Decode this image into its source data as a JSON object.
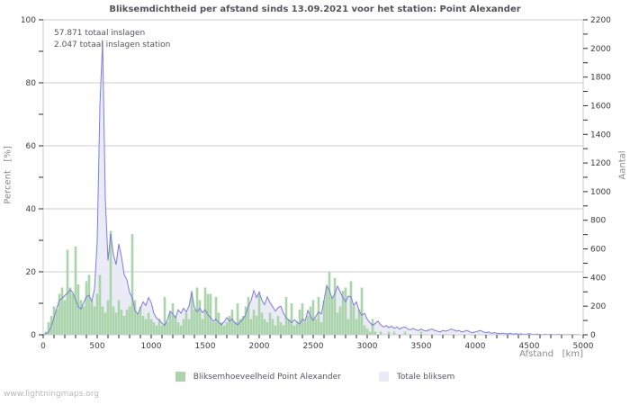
{
  "title": "Bliksemdichtheid per afstand sinds 13.09.2021 voor het station: Point Alexander",
  "annotations": {
    "line1": "57.871 totaal inslagen",
    "line2": "2.047 totaal inslagen station"
  },
  "watermark": "www.lightningmaps.org",
  "colors": {
    "grid": "#cccccc",
    "tick": "#2a2a2a",
    "bar_green": "#aad4aa",
    "line_blue": "#7d7dd8",
    "fill_lavender": "#ebebf8"
  },
  "legend": [
    {
      "label": "Bliksemhoeveelheid Point Alexander",
      "color": "#aad4aa"
    },
    {
      "label": "Totale bliksem",
      "color": "#ebebf8"
    }
  ],
  "axes": {
    "left": {
      "title": "Percent   [%]",
      "major_ticks": [
        0,
        20,
        40,
        60,
        80,
        100
      ],
      "minor_step": 10
    },
    "right": {
      "title": "Aantal",
      "major_ticks": [
        0,
        200,
        400,
        600,
        800,
        1000,
        1200,
        1400,
        1600,
        1800,
        2000,
        2200
      ],
      "minor_step": 100
    },
    "bottom": {
      "title": "Afstand   [km]",
      "major_ticks": [
        0,
        500,
        1000,
        1500,
        2000,
        2500,
        3000,
        3500,
        4000,
        4500,
        5000
      ],
      "minor_step": 100
    }
  },
  "chart_data": {
    "type": "combo",
    "x_range": [
      0,
      5000
    ],
    "x_step": 25,
    "xlabel": "Afstand [km]",
    "left_ylabel": "Percent [%]",
    "right_ylabel": "Aantal",
    "left_ylim": [
      0,
      100
    ],
    "right_ylim": [
      0,
      2200
    ],
    "grid": true,
    "legend_position": "bottom",
    "series": [
      {
        "name": "Bliksemhoeveelheid Point Alexander",
        "type": "bar",
        "axis": "left",
        "unit": "%",
        "color": "#aad4aa",
        "values": [
          0,
          1,
          4,
          6,
          9,
          8,
          13,
          15,
          11,
          27,
          15,
          13,
          28,
          16,
          11,
          9,
          17,
          19,
          11,
          9,
          13,
          19,
          9,
          7,
          11,
          33,
          9,
          7,
          11,
          8,
          6,
          8,
          9,
          32,
          11,
          7,
          9,
          6,
          5,
          7,
          5,
          4,
          3,
          5,
          3,
          12,
          4,
          7,
          10,
          6,
          4,
          3,
          5,
          7,
          5,
          14,
          8,
          15,
          11,
          5,
          15,
          13,
          13,
          4,
          12,
          7,
          4,
          3,
          4,
          6,
          8,
          4,
          10,
          5,
          6,
          9,
          12,
          5,
          8,
          6,
          13,
          7,
          5,
          4,
          7,
          5,
          3,
          6,
          4,
          3,
          12,
          5,
          10,
          3,
          4,
          8,
          10,
          4,
          6,
          9,
          11,
          5,
          12,
          4,
          11,
          15,
          20,
          12,
          18,
          7,
          9,
          14,
          15,
          5,
          17,
          9,
          5,
          8,
          15,
          3,
          2,
          1,
          5,
          1,
          0,
          1,
          0,
          0,
          1,
          0,
          1,
          0,
          0,
          0,
          1,
          0,
          0,
          0,
          0,
          0,
          1,
          0,
          0,
          0,
          0,
          0,
          0,
          0,
          0,
          0,
          0,
          0,
          0,
          0,
          0,
          0,
          0,
          0,
          0,
          0,
          0,
          0,
          0,
          0,
          0,
          0,
          0,
          0,
          0,
          0,
          0,
          0,
          0,
          0,
          0,
          0,
          0,
          0,
          0,
          0,
          0,
          0,
          0,
          0,
          0,
          0,
          0,
          0,
          0,
          0,
          0,
          0,
          0,
          0,
          0,
          0,
          0,
          0,
          0,
          0,
          0
        ]
      },
      {
        "name": "Totale bliksem",
        "type": "area",
        "axis": "right",
        "unit": "aantal",
        "color": "#7d7dd8",
        "fill": "#ebebf8",
        "values": [
          2,
          8,
          18,
          60,
          120,
          185,
          240,
          255,
          275,
          290,
          315,
          295,
          245,
          195,
          180,
          225,
          265,
          275,
          235,
          320,
          650,
          1600,
          2055,
          950,
          520,
          705,
          560,
          490,
          635,
          545,
          420,
          385,
          295,
          260,
          170,
          145,
          185,
          230,
          205,
          260,
          225,
          150,
          115,
          105,
          80,
          65,
          105,
          165,
          145,
          120,
          175,
          150,
          185,
          160,
          200,
          295,
          190,
          160,
          185,
          155,
          175,
          140,
          120,
          95,
          110,
          85,
          70,
          90,
          120,
          95,
          110,
          85,
          70,
          90,
          110,
          140,
          200,
          240,
          310,
          260,
          300,
          240,
          210,
          265,
          225,
          195,
          165,
          190,
          200,
          150,
          120,
          100,
          85,
          105,
          90,
          75,
          110,
          95,
          170,
          130,
          100,
          130,
          160,
          145,
          240,
          345,
          310,
          255,
          285,
          340,
          300,
          260,
          230,
          270,
          265,
          205,
          230,
          170,
          135,
          150,
          110,
          85,
          65,
          80,
          95,
          70,
          55,
          65,
          50,
          60,
          45,
          55,
          40,
          50,
          55,
          40,
          35,
          45,
          35,
          30,
          40,
          30,
          25,
          35,
          40,
          30,
          25,
          20,
          30,
          25,
          30,
          40,
          35,
          25,
          30,
          20,
          25,
          30,
          20,
          15,
          20,
          25,
          30,
          20,
          15,
          20,
          10,
          15,
          10,
          8,
          12,
          8,
          6,
          10,
          5,
          8,
          5,
          6,
          4,
          5,
          8,
          4,
          3,
          5,
          3,
          2,
          4,
          2,
          3,
          2,
          1,
          3,
          1,
          2,
          1,
          2,
          1,
          1,
          1,
          0,
          0
        ]
      }
    ]
  }
}
